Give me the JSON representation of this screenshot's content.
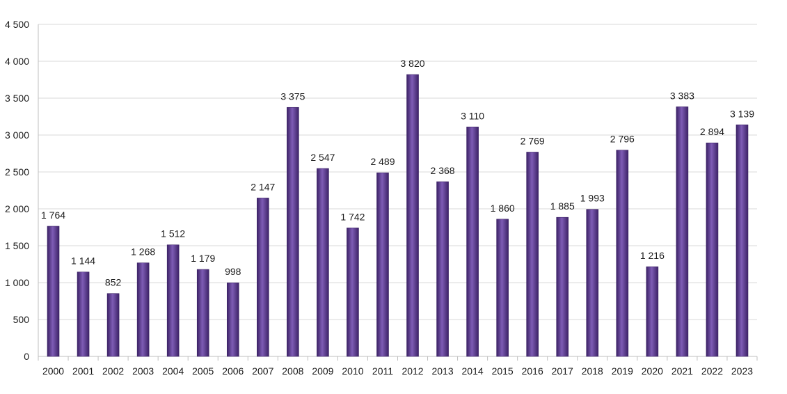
{
  "chart_data": {
    "type": "bar",
    "title": "",
    "xlabel": "",
    "ylabel": "",
    "categories": [
      "2000",
      "2001",
      "2002",
      "2003",
      "2004",
      "2005",
      "2006",
      "2007",
      "2008",
      "2009",
      "2010",
      "2011",
      "2012",
      "2013",
      "2014",
      "2015",
      "2016",
      "2017",
      "2018",
      "2019",
      "2020",
      "2021",
      "2022",
      "2023"
    ],
    "values": [
      1764,
      1144,
      852,
      1268,
      1512,
      1179,
      998,
      2147,
      3375,
      2547,
      1742,
      2489,
      3820,
      2368,
      3110,
      1860,
      2769,
      1885,
      1993,
      2796,
      1216,
      3383,
      2894,
      3139
    ],
    "value_labels": [
      "1 764",
      "1 144",
      "852",
      "1 268",
      "1 512",
      "1 179",
      "998",
      "2 147",
      "3 375",
      "2 547",
      "1 742",
      "2 489",
      "3 820",
      "2 368",
      "3 110",
      "1 860",
      "2 769",
      "1 885",
      "1 993",
      "2 796",
      "1 216",
      "3 383",
      "2 894",
      "3 139"
    ],
    "ylim": [
      0,
      4500
    ],
    "yticks": [
      0,
      500,
      1000,
      1500,
      2000,
      2500,
      3000,
      3500,
      4000,
      4500
    ],
    "ytick_labels": [
      "0",
      "500",
      "1 000",
      "1 500",
      "2 000",
      "2 500",
      "3 000",
      "3 500",
      "4 000",
      "4 500"
    ],
    "grid": true,
    "legend": "none",
    "bar_color": "#5b3a8e",
    "bar_color_light": "#7e5cb5",
    "bar_color_dark": "#3c2266"
  }
}
